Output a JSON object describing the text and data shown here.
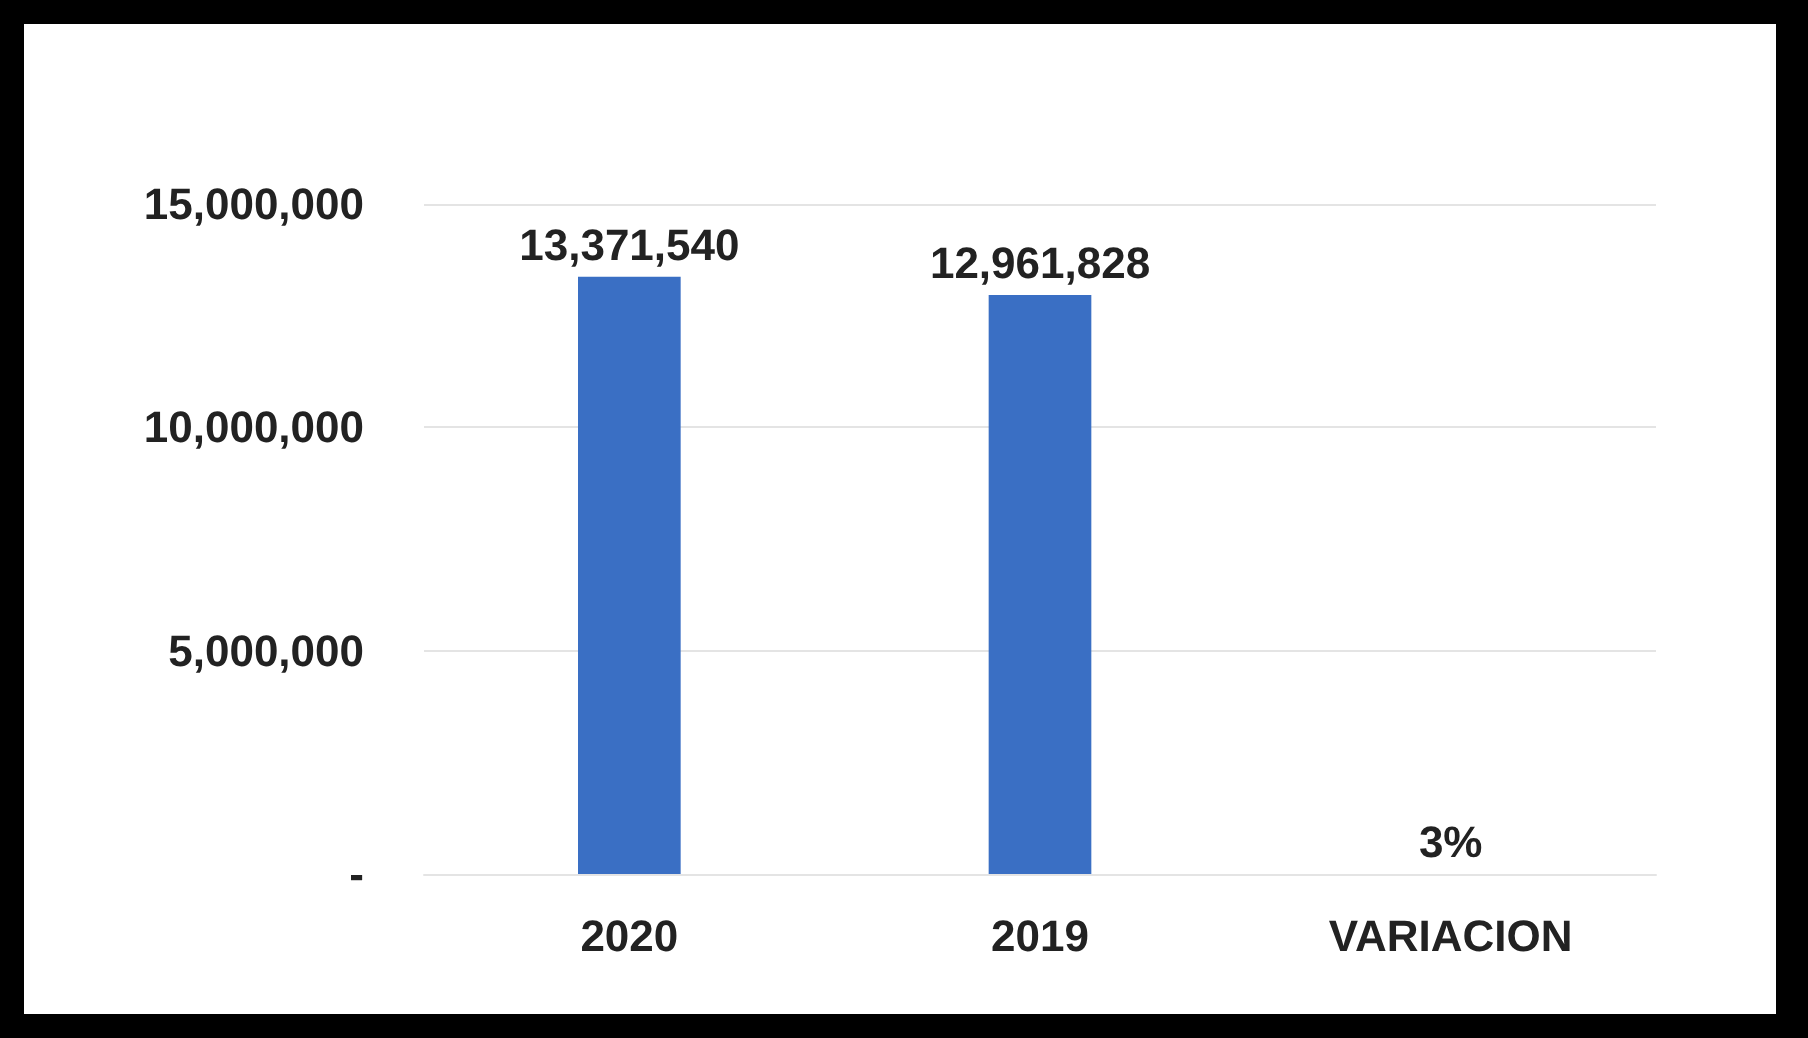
{
  "chart_data": {
    "type": "bar",
    "categories": [
      "2020",
      "2019",
      "VARIACION"
    ],
    "values": [
      13371540,
      12961828,
      3
    ],
    "value_labels": [
      "13,371,540",
      "12,961,828",
      "3%"
    ],
    "color": "#3a6fc4",
    "ylim": [
      0,
      15000000
    ],
    "yticks": [
      {
        "value": 0,
        "label": "-"
      },
      {
        "value": 5000000,
        "label": "5,000,000"
      },
      {
        "value": 10000000,
        "label": "10,000,000"
      },
      {
        "value": 15000000,
        "label": "15,000,000"
      }
    ],
    "grid": "y"
  }
}
